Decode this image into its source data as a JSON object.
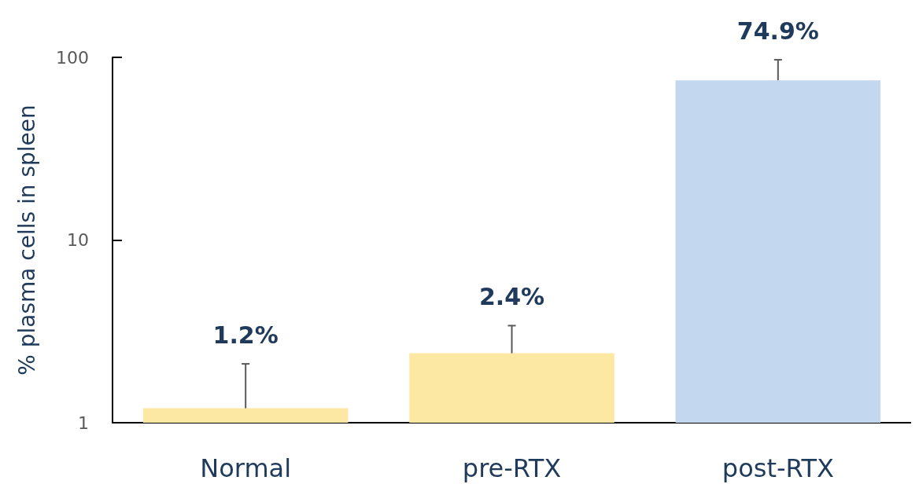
{
  "chart_data": {
    "type": "bar",
    "ylabel": "% plasma cells in spleen",
    "categories": [
      "Normal",
      "pre-RTX",
      "post-RTX"
    ],
    "values": [
      1.2,
      2.4,
      74.9
    ],
    "colors": [
      "#fce8a2",
      "#fce8a2",
      "#c3d8ee"
    ],
    "errors": [
      [
        1.2,
        2.1
      ],
      [
        2.4,
        3.4
      ],
      [
        74.9,
        97
      ]
    ],
    "value_labels": [
      "1.2%",
      "2.4%",
      "74.9%"
    ],
    "log": true,
    "ylim": [
      1,
      100
    ],
    "yticks": [
      1,
      10,
      100
    ],
    "grid": false
  }
}
